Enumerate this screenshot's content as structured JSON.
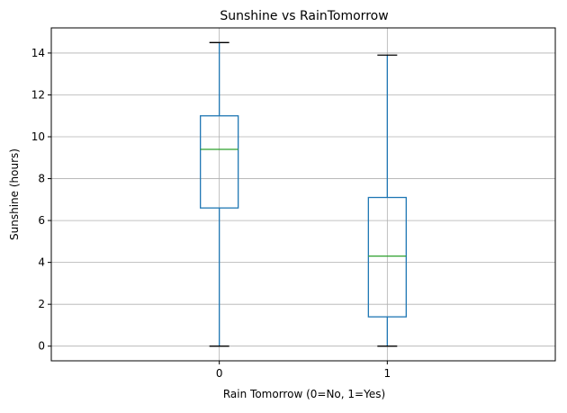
{
  "chart_data": {
    "type": "boxplot",
    "title": "Sunshine vs RainTomorrow",
    "xlabel": "Rain Tomorrow (0=No, 1=Yes)",
    "ylabel": "Sunshine (hours)",
    "categories": [
      "0",
      "1"
    ],
    "ylim": [
      -0.7,
      15.2
    ],
    "yticks": [
      0,
      2,
      4,
      6,
      8,
      10,
      12,
      14
    ],
    "grid": true,
    "boxes": [
      {
        "category": "0",
        "whisker_low": 0.0,
        "q1": 6.6,
        "median": 9.4,
        "q3": 11.0,
        "whisker_high": 14.5
      },
      {
        "category": "1",
        "whisker_low": 0.0,
        "q1": 1.4,
        "median": 4.3,
        "q3": 7.1,
        "whisker_high": 13.9
      }
    ],
    "colors": {
      "box": "#1f77b4",
      "median": "#2ca02c",
      "cap": "#000000",
      "grid": "#b0b0b0",
      "axis": "#000000"
    }
  }
}
